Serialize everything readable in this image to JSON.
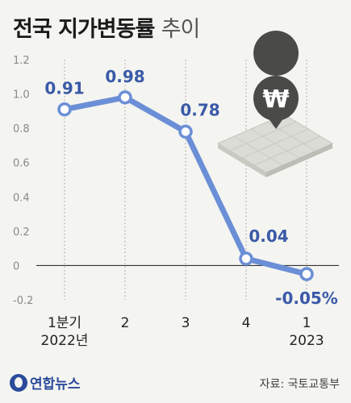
{
  "chart_data": {
    "type": "line",
    "title": "전국 지가변동률",
    "subtitle": "추이",
    "categories": [
      [
        "1분기",
        "2022년"
      ],
      [
        "2"
      ],
      [
        "3"
      ],
      [
        "4"
      ],
      [
        "1",
        "2023"
      ]
    ],
    "values": [
      0.91,
      0.98,
      0.78,
      0.04,
      -0.05
    ],
    "data_labels": [
      "0.91",
      "0.98",
      "0.78",
      "0.04",
      "-0.05%"
    ],
    "ylim": [
      -0.2,
      1.2
    ],
    "yticks": [
      "1.2",
      "1.0",
      "0.8",
      "0.6",
      "0.4",
      "0.2",
      "0",
      "-0.2"
    ],
    "ytick_values": [
      1.2,
      1.0,
      0.8,
      0.6,
      0.4,
      0.2,
      0,
      -0.2
    ],
    "line_color": "#6b8fd6",
    "label_color": "#3a5aa8",
    "grid": "vertical dotted lines at categories, solid zero line"
  },
  "footer": {
    "logo_text": "연합뉴스",
    "source": "자료: 국토교통부"
  },
  "icon": "won-map-pin-icon"
}
